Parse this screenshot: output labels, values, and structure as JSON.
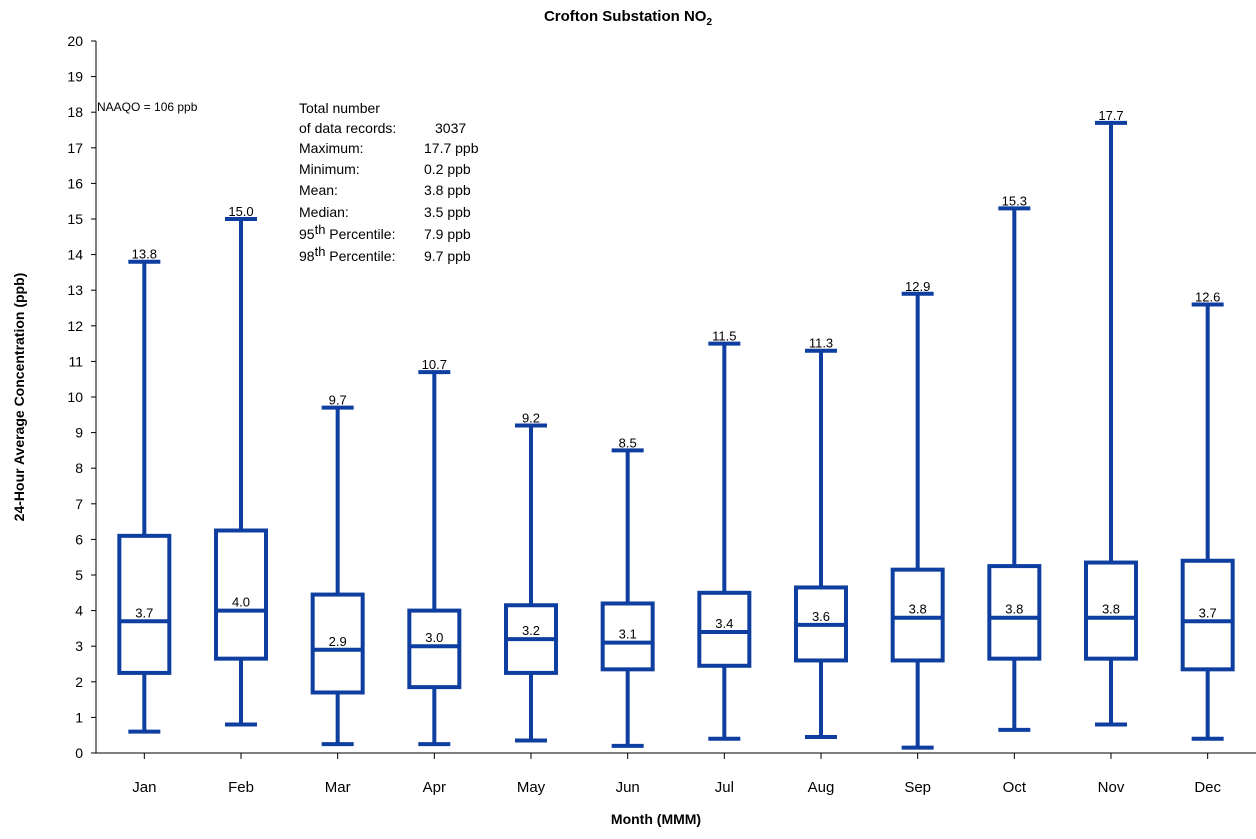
{
  "chart_data": {
    "type": "box",
    "title": "Crofton Substation NO",
    "title_subscript": "2",
    "xlabel": "Month (MMM)",
    "ylabel": "24-Hour Average Concentration (ppb)",
    "ylim": [
      0,
      20
    ],
    "yticks": [
      "0",
      "1",
      "2",
      "3",
      "4",
      "5",
      "6",
      "7",
      "8",
      "9",
      "10",
      "11",
      "12",
      "13",
      "14",
      "15",
      "16",
      "17",
      "18",
      "19",
      "20"
    ],
    "categories": [
      "Jan",
      "Feb",
      "Mar",
      "Apr",
      "May",
      "Jun",
      "Jul",
      "Aug",
      "Sep",
      "Oct",
      "Nov",
      "Dec"
    ],
    "series": [
      {
        "color": "#0d3ea0",
        "boxes": [
          {
            "min": 0.6,
            "q1": 2.25,
            "median": 3.7,
            "q3": 6.1,
            "max": 13.8,
            "median_label": "3.7",
            "max_label": "13.8"
          },
          {
            "min": 0.8,
            "q1": 2.65,
            "median": 4.0,
            "q3": 6.25,
            "max": 15.0,
            "median_label": "4.0",
            "max_label": "15.0"
          },
          {
            "min": 0.25,
            "q1": 1.7,
            "median": 2.9,
            "q3": 4.45,
            "max": 9.7,
            "median_label": "2.9",
            "max_label": "9.7"
          },
          {
            "min": 0.25,
            "q1": 1.85,
            "median": 3.0,
            "q3": 4.0,
            "max": 10.7,
            "median_label": "3.0",
            "max_label": "10.7"
          },
          {
            "min": 0.35,
            "q1": 2.25,
            "median": 3.2,
            "q3": 4.15,
            "max": 9.2,
            "median_label": "3.2",
            "max_label": "9.2"
          },
          {
            "min": 0.2,
            "q1": 2.35,
            "median": 3.1,
            "q3": 4.2,
            "max": 8.5,
            "median_label": "3.1",
            "max_label": "8.5"
          },
          {
            "min": 0.4,
            "q1": 2.45,
            "median": 3.4,
            "q3": 4.5,
            "max": 11.5,
            "median_label": "3.4",
            "max_label": "11.5"
          },
          {
            "min": 0.45,
            "q1": 2.6,
            "median": 3.6,
            "q3": 4.65,
            "max": 11.3,
            "median_label": "3.6",
            "max_label": "11.3"
          },
          {
            "min": 0.15,
            "q1": 2.6,
            "median": 3.8,
            "q3": 5.15,
            "max": 12.9,
            "median_label": "3.8",
            "max_label": "12.9"
          },
          {
            "min": 0.65,
            "q1": 2.65,
            "median": 3.8,
            "q3": 5.25,
            "max": 15.3,
            "median_label": "3.8",
            "max_label": "15.3"
          },
          {
            "min": 0.8,
            "q1": 2.65,
            "median": 3.8,
            "q3": 5.35,
            "max": 17.7,
            "median_label": "3.8",
            "max_label": "17.7"
          },
          {
            "min": 0.4,
            "q1": 2.35,
            "median": 3.7,
            "q3": 5.4,
            "max": 12.6,
            "median_label": "3.7",
            "max_label": "12.6"
          }
        ]
      }
    ],
    "annotations": {
      "naaqo": "NAAQO = 106 ppb",
      "stats": [
        {
          "label": "Total number",
          "value": ""
        },
        {
          "label": "of data records:",
          "value": "3037"
        },
        {
          "label": "Maximum:",
          "value": "17.7 ppb"
        },
        {
          "label": "Minimum:",
          "value": "0.2 ppb"
        },
        {
          "label": "Mean:",
          "value": "3.8 ppb"
        },
        {
          "label": "Median:",
          "value": "3.5 ppb"
        },
        {
          "label": "95",
          "label_sup": "th",
          "label_rest": " Percentile:",
          "value": "7.9 ppb"
        },
        {
          "label": "98",
          "label_sup": "th",
          "label_rest": " Percentile:",
          "value": "9.7 ppb"
        }
      ]
    },
    "grid": false,
    "legend": "none"
  }
}
